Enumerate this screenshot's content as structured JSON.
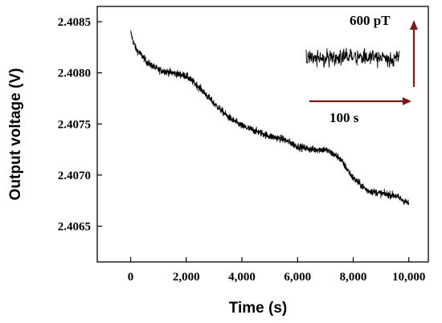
{
  "chart_data": {
    "type": "line",
    "xlabel": "Time (s)",
    "ylabel": "Output voltage (V)",
    "xlim": [
      -1200,
      10700
    ],
    "ylim": [
      2.40615,
      2.40865
    ],
    "x_ticks": [
      0,
      2000,
      4000,
      6000,
      8000,
      10000
    ],
    "x_tick_labels": [
      "0",
      "2,000",
      "4,000",
      "6,000",
      "8,000",
      "10,000"
    ],
    "y_ticks": [
      2.4065,
      2.407,
      2.4075,
      2.408,
      2.4085
    ],
    "y_tick_labels": [
      "2.4065",
      "2.4070",
      "2.4075",
      "2.4080",
      "2.4085"
    ],
    "grid": false,
    "color": "#000000",
    "series": [
      {
        "x": [
          0,
          100,
          200,
          400,
          600,
          1000,
          1500,
          2000,
          2500,
          3000,
          3500,
          4000,
          4500,
          5000,
          5500,
          6000,
          6500,
          7000,
          7500,
          8000,
          8500,
          9000,
          9500,
          10000
        ],
        "values": [
          2.4084,
          2.4083,
          2.40823,
          2.40817,
          2.4081,
          2.40803,
          2.408,
          2.40797,
          2.40785,
          2.4077,
          2.40757,
          2.40748,
          2.40743,
          2.40738,
          2.40735,
          2.40728,
          2.40725,
          2.40725,
          2.40717,
          2.40697,
          2.40685,
          2.40682,
          2.4068,
          2.40672
        ],
        "noise_amplitude": 6e-05
      }
    ],
    "inset": {
      "scale_y_label": "600 pT",
      "scale_x_label": "100 s",
      "arrow_color": "#7a1a1a"
    }
  }
}
